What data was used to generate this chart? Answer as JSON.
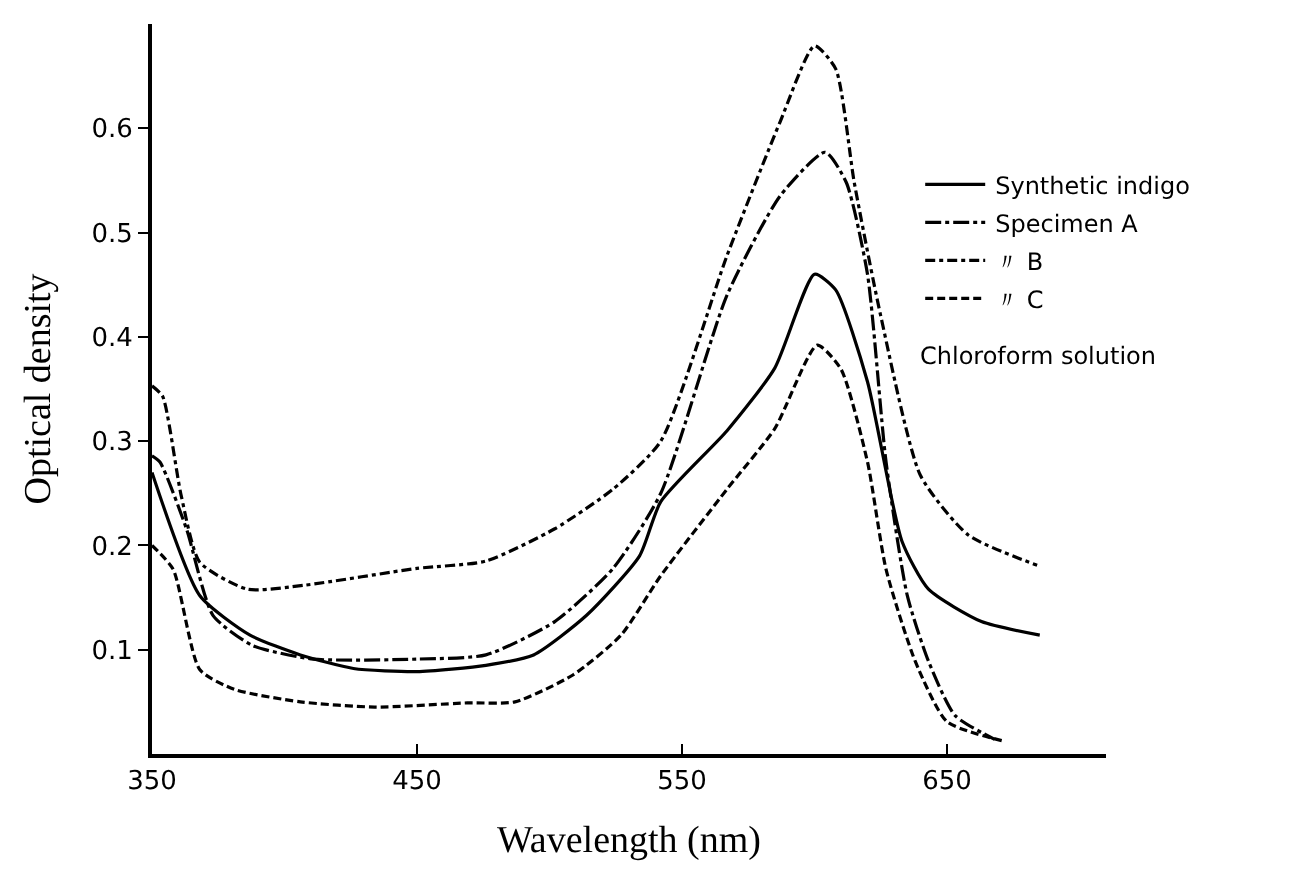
{
  "chart_data": {
    "type": "line",
    "xlabel": "Wavelength (nm)",
    "ylabel": "Optical density",
    "xlim": [
      350,
      710
    ],
    "ylim": [
      0,
      0.7
    ],
    "xticks": [
      350,
      450,
      550,
      650
    ],
    "yticks": [
      0.1,
      0.2,
      0.3,
      0.4,
      0.5,
      0.6
    ],
    "legend": "top right",
    "marker": "none",
    "annotations": [
      "Chloroform solution"
    ],
    "series": [
      {
        "name": "Synthetic indigo",
        "color": "#000000",
        "line_style": "solid",
        "x": [
          350,
          368,
          387,
          406,
          426,
          450,
          476,
          494,
          514,
          534,
          542,
          567,
          585,
          600,
          608,
          620,
          633,
          643,
          663,
          685
        ],
        "values": [
          0.27,
          0.152,
          0.114,
          0.095,
          0.082,
          0.079,
          0.085,
          0.095,
          0.133,
          0.19,
          0.242,
          0.31,
          0.37,
          0.46,
          0.445,
          0.357,
          0.204,
          0.158,
          0.127,
          0.114
        ]
      },
      {
        "name": "Specimen A",
        "color": "#000000",
        "line_style": "longdashdot",
        "x": [
          350,
          353,
          363,
          373,
          388,
          411,
          450,
          476,
          502,
          524,
          542,
          567,
          587,
          604,
          612,
          620,
          627,
          635,
          643,
          653,
          668
        ],
        "values": [
          0.286,
          0.28,
          0.216,
          0.133,
          0.104,
          0.091,
          0.091,
          0.095,
          0.127,
          0.178,
          0.25,
          0.44,
          0.535,
          0.577,
          0.548,
          0.46,
          0.28,
          0.152,
          0.089,
          0.037,
          0.014
        ]
      },
      {
        "name": "〃 B",
        "color": "#000000",
        "line_style": "dashdot",
        "x": [
          350,
          354,
          361,
          368,
          386,
          408,
          450,
          476,
          502,
          524,
          542,
          567,
          587,
          600,
          608,
          615,
          625,
          640,
          658,
          684
        ],
        "values": [
          0.353,
          0.343,
          0.248,
          0.184,
          0.158,
          0.162,
          0.178,
          0.185,
          0.216,
          0.254,
          0.3,
          0.478,
          0.606,
          0.679,
          0.657,
          0.548,
          0.42,
          0.267,
          0.21,
          0.181
        ]
      },
      {
        "name": "〃 C",
        "color": "#000000",
        "line_style": "dashed",
        "x": [
          350,
          358,
          368,
          381,
          406,
          434,
          469,
          487,
          509,
          527,
          542,
          567,
          585,
          601,
          610,
          620,
          627,
          638,
          650,
          672
        ],
        "values": [
          0.2,
          0.177,
          0.081,
          0.062,
          0.05,
          0.045,
          0.049,
          0.05,
          0.076,
          0.114,
          0.171,
          0.254,
          0.312,
          0.392,
          0.369,
          0.28,
          0.177,
          0.089,
          0.031,
          0.012
        ]
      }
    ]
  }
}
